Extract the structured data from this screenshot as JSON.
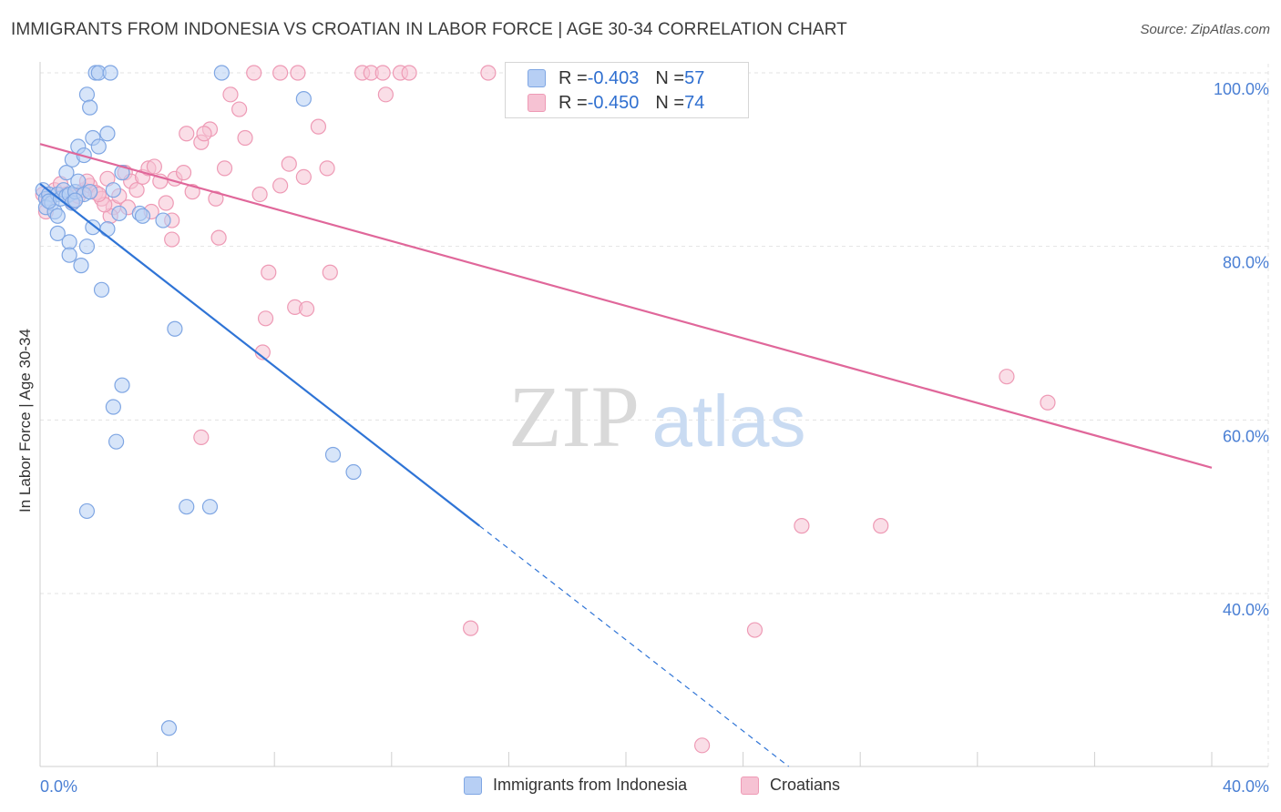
{
  "title": "IMMIGRANTS FROM INDONESIA VS CROATIAN IN LABOR FORCE | AGE 30-34 CORRELATION CHART",
  "source": "Source: ZipAtlas.com",
  "watermark": {
    "zip": "ZIP",
    "atlas": "atlas"
  },
  "colors": {
    "blue_fill": "#b7cff4",
    "blue_stroke": "#7fa6e3",
    "blue_line": "#2f74d6",
    "pink_fill": "#f6c2d3",
    "pink_stroke": "#ee9ab5",
    "pink_line": "#e0679a",
    "tick_text": "#4a7fd4",
    "grid": "#e3e3e3"
  },
  "stats": {
    "rows": [
      {
        "r_label": "R = ",
        "r_value": "-0.403",
        "n_label": "N = ",
        "n_value": "57",
        "series": "blue"
      },
      {
        "r_label": "R = ",
        "r_value": "-0.450",
        "n_label": "N = ",
        "n_value": "74",
        "series": "pink"
      }
    ]
  },
  "legend": {
    "items": [
      {
        "label": "Immigrants from Indonesia",
        "series": "blue"
      },
      {
        "label": "Croatians",
        "series": "pink"
      }
    ]
  },
  "chart_data": {
    "type": "scatter",
    "title": "IMMIGRANTS FROM INDONESIA VS CROATIAN IN LABOR FORCE | AGE 30-34 CORRELATION CHART",
    "xlabel": "",
    "ylabel": "In Labor Force | Age 30-34",
    "xlim": [
      0,
      40
    ],
    "ylim": [
      20,
      103
    ],
    "x_tick_labels": [
      {
        "value": 0,
        "label": "0.0%"
      },
      {
        "value": 40,
        "label": "40.0%"
      }
    ],
    "x_minor_ticks": [
      4,
      8,
      12,
      16,
      20,
      24,
      28,
      32,
      36,
      40
    ],
    "y_ticks": [
      {
        "value": 100,
        "label": "100.0%"
      },
      {
        "value": 80,
        "label": "80.0%"
      },
      {
        "value": 60,
        "label": "60.0%"
      },
      {
        "value": 40,
        "label": "40.0%"
      }
    ],
    "grid": true,
    "series": [
      {
        "name": "Immigrants from Indonesia",
        "color": "blue",
        "trend": {
          "x0": 0,
          "y0": 87.2,
          "x1": 15.0,
          "y1": 47.8,
          "dash_to_x": 40
        },
        "points": [
          [
            0.1,
            86.5
          ],
          [
            0.2,
            85.5
          ],
          [
            0.3,
            86.0
          ],
          [
            0.2,
            84.5
          ],
          [
            0.4,
            85.0
          ],
          [
            0.5,
            84.0
          ],
          [
            0.6,
            86.0
          ],
          [
            0.3,
            85.2
          ],
          [
            0.7,
            85.5
          ],
          [
            0.8,
            86.5
          ],
          [
            0.9,
            85.8
          ],
          [
            1.0,
            86.0
          ],
          [
            1.1,
            85.0
          ],
          [
            1.2,
            86.3
          ],
          [
            1.3,
            87.5
          ],
          [
            1.5,
            86.0
          ],
          [
            1.7,
            86.3
          ],
          [
            0.6,
            83.5
          ],
          [
            0.9,
            88.5
          ],
          [
            1.1,
            90.0
          ],
          [
            1.3,
            91.5
          ],
          [
            1.5,
            90.5
          ],
          [
            1.6,
            97.5
          ],
          [
            1.7,
            96.0
          ],
          [
            1.8,
            92.5
          ],
          [
            2.0,
            91.5
          ],
          [
            2.3,
            93.0
          ],
          [
            1.9,
            100.0
          ],
          [
            2.0,
            100.0
          ],
          [
            2.4,
            100.0
          ],
          [
            6.2,
            100.0
          ],
          [
            9.0,
            97.0
          ],
          [
            2.8,
            88.5
          ],
          [
            3.4,
            83.8
          ],
          [
            3.5,
            83.5
          ],
          [
            2.7,
            83.8
          ],
          [
            2.3,
            82.0
          ],
          [
            1.8,
            82.2
          ],
          [
            0.6,
            81.5
          ],
          [
            1.0,
            80.5
          ],
          [
            1.6,
            80.0
          ],
          [
            1.0,
            79.0
          ],
          [
            1.4,
            77.8
          ],
          [
            2.1,
            75.0
          ],
          [
            4.6,
            70.5
          ],
          [
            2.8,
            64.0
          ],
          [
            2.5,
            61.5
          ],
          [
            2.6,
            57.5
          ],
          [
            10.0,
            56.0
          ],
          [
            10.7,
            54.0
          ],
          [
            1.6,
            49.5
          ],
          [
            5.0,
            50.0
          ],
          [
            5.8,
            50.0
          ],
          [
            4.4,
            24.5
          ],
          [
            4.2,
            83.0
          ],
          [
            2.5,
            86.5
          ],
          [
            1.2,
            85.3
          ]
        ]
      },
      {
        "name": "Croatians",
        "color": "pink",
        "trend": {
          "x0": 0,
          "y0": 91.8,
          "x1": 40,
          "y1": 54.5
        },
        "points": [
          [
            0.1,
            86.0
          ],
          [
            0.3,
            85.5
          ],
          [
            0.5,
            86.5
          ],
          [
            0.7,
            87.2
          ],
          [
            0.9,
            86.0
          ],
          [
            1.1,
            85.2
          ],
          [
            1.3,
            85.8
          ],
          [
            1.5,
            86.5
          ],
          [
            1.7,
            87.0
          ],
          [
            1.9,
            86.2
          ],
          [
            2.1,
            85.5
          ],
          [
            2.3,
            87.8
          ],
          [
            2.5,
            84.5
          ],
          [
            2.7,
            85.8
          ],
          [
            2.9,
            88.5
          ],
          [
            3.1,
            87.5
          ],
          [
            3.3,
            86.5
          ],
          [
            3.5,
            88.0
          ],
          [
            3.7,
            89.0
          ],
          [
            3.9,
            89.2
          ],
          [
            4.1,
            87.5
          ],
          [
            4.3,
            85.0
          ],
          [
            4.6,
            87.8
          ],
          [
            4.9,
            88.5
          ],
          [
            5.2,
            86.3
          ],
          [
            5.5,
            92.0
          ],
          [
            5.8,
            93.5
          ],
          [
            6.0,
            85.5
          ],
          [
            6.3,
            89.0
          ],
          [
            6.5,
            97.5
          ],
          [
            6.8,
            95.8
          ],
          [
            7.0,
            92.5
          ],
          [
            7.5,
            86.0
          ],
          [
            8.2,
            87.0
          ],
          [
            8.5,
            89.5
          ],
          [
            9.0,
            88.0
          ],
          [
            9.5,
            93.8
          ],
          [
            9.8,
            89.0
          ],
          [
            7.3,
            100.0
          ],
          [
            8.2,
            100.0
          ],
          [
            8.8,
            100.0
          ],
          [
            11.0,
            100.0
          ],
          [
            11.3,
            100.0
          ],
          [
            11.7,
            100.0
          ],
          [
            12.3,
            100.0
          ],
          [
            12.6,
            100.0
          ],
          [
            11.8,
            97.5
          ],
          [
            15.3,
            100.0
          ],
          [
            5.0,
            93.0
          ],
          [
            5.6,
            93.0
          ],
          [
            3.8,
            84.0
          ],
          [
            3.0,
            84.5
          ],
          [
            2.4,
            83.5
          ],
          [
            2.2,
            84.8
          ],
          [
            2.0,
            86.0
          ],
          [
            4.5,
            83.0
          ],
          [
            4.5,
            80.8
          ],
          [
            6.1,
            81.0
          ],
          [
            7.8,
            77.0
          ],
          [
            9.9,
            77.0
          ],
          [
            8.7,
            73.0
          ],
          [
            9.1,
            72.8
          ],
          [
            7.7,
            71.7
          ],
          [
            7.6,
            67.8
          ],
          [
            5.5,
            58.0
          ],
          [
            33.0,
            65.0
          ],
          [
            34.4,
            62.0
          ],
          [
            26.0,
            47.8
          ],
          [
            28.7,
            47.8
          ],
          [
            14.7,
            36.0
          ],
          [
            24.4,
            35.8
          ],
          [
            22.6,
            22.5
          ],
          [
            1.6,
            87.5
          ],
          [
            0.2,
            84.0
          ]
        ]
      }
    ]
  }
}
